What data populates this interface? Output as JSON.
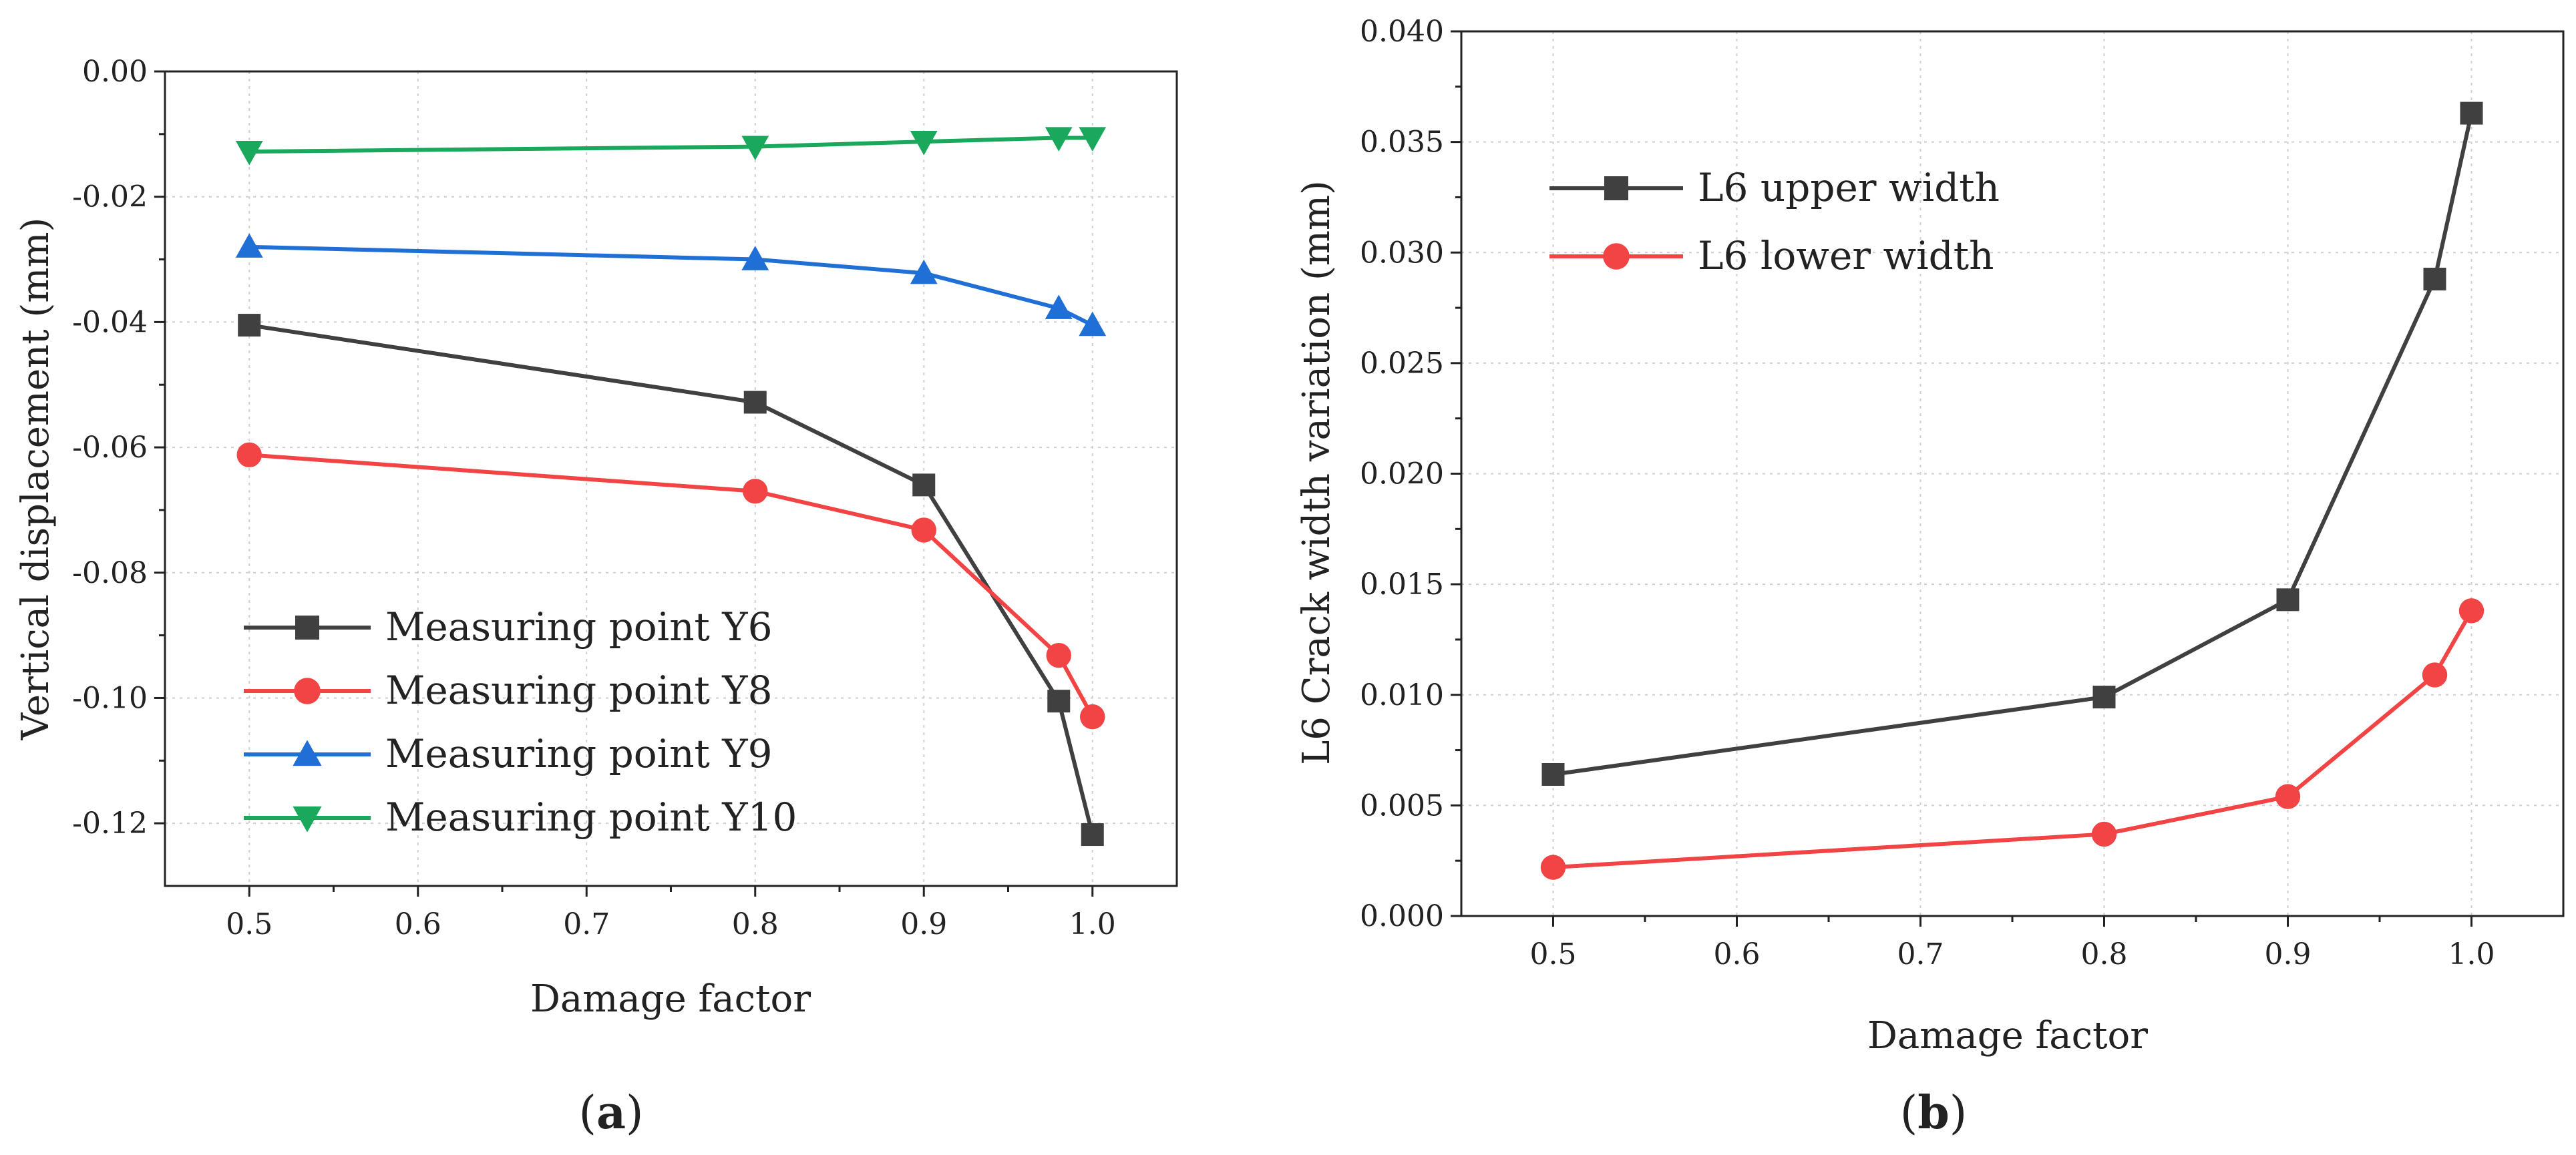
{
  "chart_data": [
    {
      "type": "line",
      "panel_label": "a",
      "xlabel": "Damage factor",
      "ylabel": "Vertical displacement (mm)",
      "xlim": [
        0.45,
        1.05
      ],
      "ylim": [
        -0.13,
        0.0
      ],
      "xticks": [
        "0.5",
        "0.6",
        "0.7",
        "0.8",
        "0.9",
        "1.0"
      ],
      "yticks": [
        "0.00",
        "-0.02",
        "-0.04",
        "-0.06",
        "-0.08",
        "-0.10",
        "-0.12"
      ],
      "grid": true,
      "legend_position": "bottom-left",
      "x": [
        0.5,
        0.8,
        0.9,
        0.98,
        1.0
      ],
      "series": [
        {
          "name": "Measuring point Y6",
          "color": "#404040",
          "marker": "square",
          "values": [
            -0.0405,
            -0.0528,
            -0.066,
            -0.1005,
            -0.1218
          ]
        },
        {
          "name": "Measuring point Y8",
          "color": "#f24444",
          "marker": "circle",
          "values": [
            -0.0612,
            -0.067,
            -0.0732,
            -0.0932,
            -0.103
          ]
        },
        {
          "name": "Measuring point Y9",
          "color": "#1f6fd6",
          "marker": "triangle-up",
          "values": [
            -0.028,
            -0.03,
            -0.0322,
            -0.0378,
            -0.0405
          ]
        },
        {
          "name": "Measuring point Y10",
          "color": "#1aa85c",
          "marker": "triangle-down",
          "values": [
            -0.0128,
            -0.012,
            -0.0112,
            -0.0106,
            -0.0106
          ]
        }
      ]
    },
    {
      "type": "line",
      "panel_label": "b",
      "xlabel": "Damage factor",
      "ylabel": "L6 Crack width variation (mm)",
      "xlim": [
        0.45,
        1.05
      ],
      "ylim": [
        0.0,
        0.04
      ],
      "xticks": [
        "0.5",
        "0.6",
        "0.7",
        "0.8",
        "0.9",
        "1.0"
      ],
      "yticks": [
        "0.000",
        "0.005",
        "0.010",
        "0.015",
        "0.020",
        "0.025",
        "0.030",
        "0.035",
        "0.040"
      ],
      "grid": true,
      "legend_position": "top-left",
      "x": [
        0.5,
        0.8,
        0.9,
        0.98,
        1.0
      ],
      "series": [
        {
          "name": "L6 upper width",
          "color": "#404040",
          "marker": "square",
          "values": [
            0.0064,
            0.0099,
            0.0143,
            0.0288,
            0.0363
          ]
        },
        {
          "name": "L6 lower width",
          "color": "#f24444",
          "marker": "circle",
          "values": [
            0.0022,
            0.0037,
            0.0054,
            0.0109,
            0.0138
          ]
        }
      ]
    }
  ],
  "captions": {
    "a": {
      "open": "(",
      "label": "a",
      "close": ")"
    },
    "b": {
      "open": "(",
      "label": "b",
      "close": ")"
    }
  }
}
